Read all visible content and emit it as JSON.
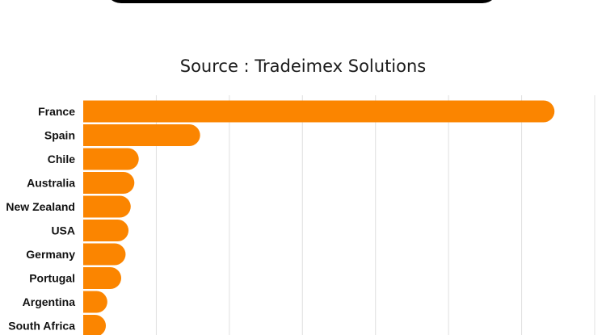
{
  "header": {
    "bar_color": "#000000"
  },
  "chart_data": {
    "type": "bar",
    "orientation": "horizontal",
    "subtitle": "Source : Tradeimex Solutions",
    "categories": [
      "France",
      "Spain",
      "Chile",
      "Australia",
      "New Zealand",
      "USA",
      "Germany",
      "Portugal",
      "Argentina",
      "South Africa"
    ],
    "values": [
      645,
      160,
      76,
      70,
      65,
      62,
      58,
      52,
      33,
      31
    ],
    "xlim": [
      0,
      700
    ],
    "grid": true,
    "bar_color": "#fb8500"
  }
}
